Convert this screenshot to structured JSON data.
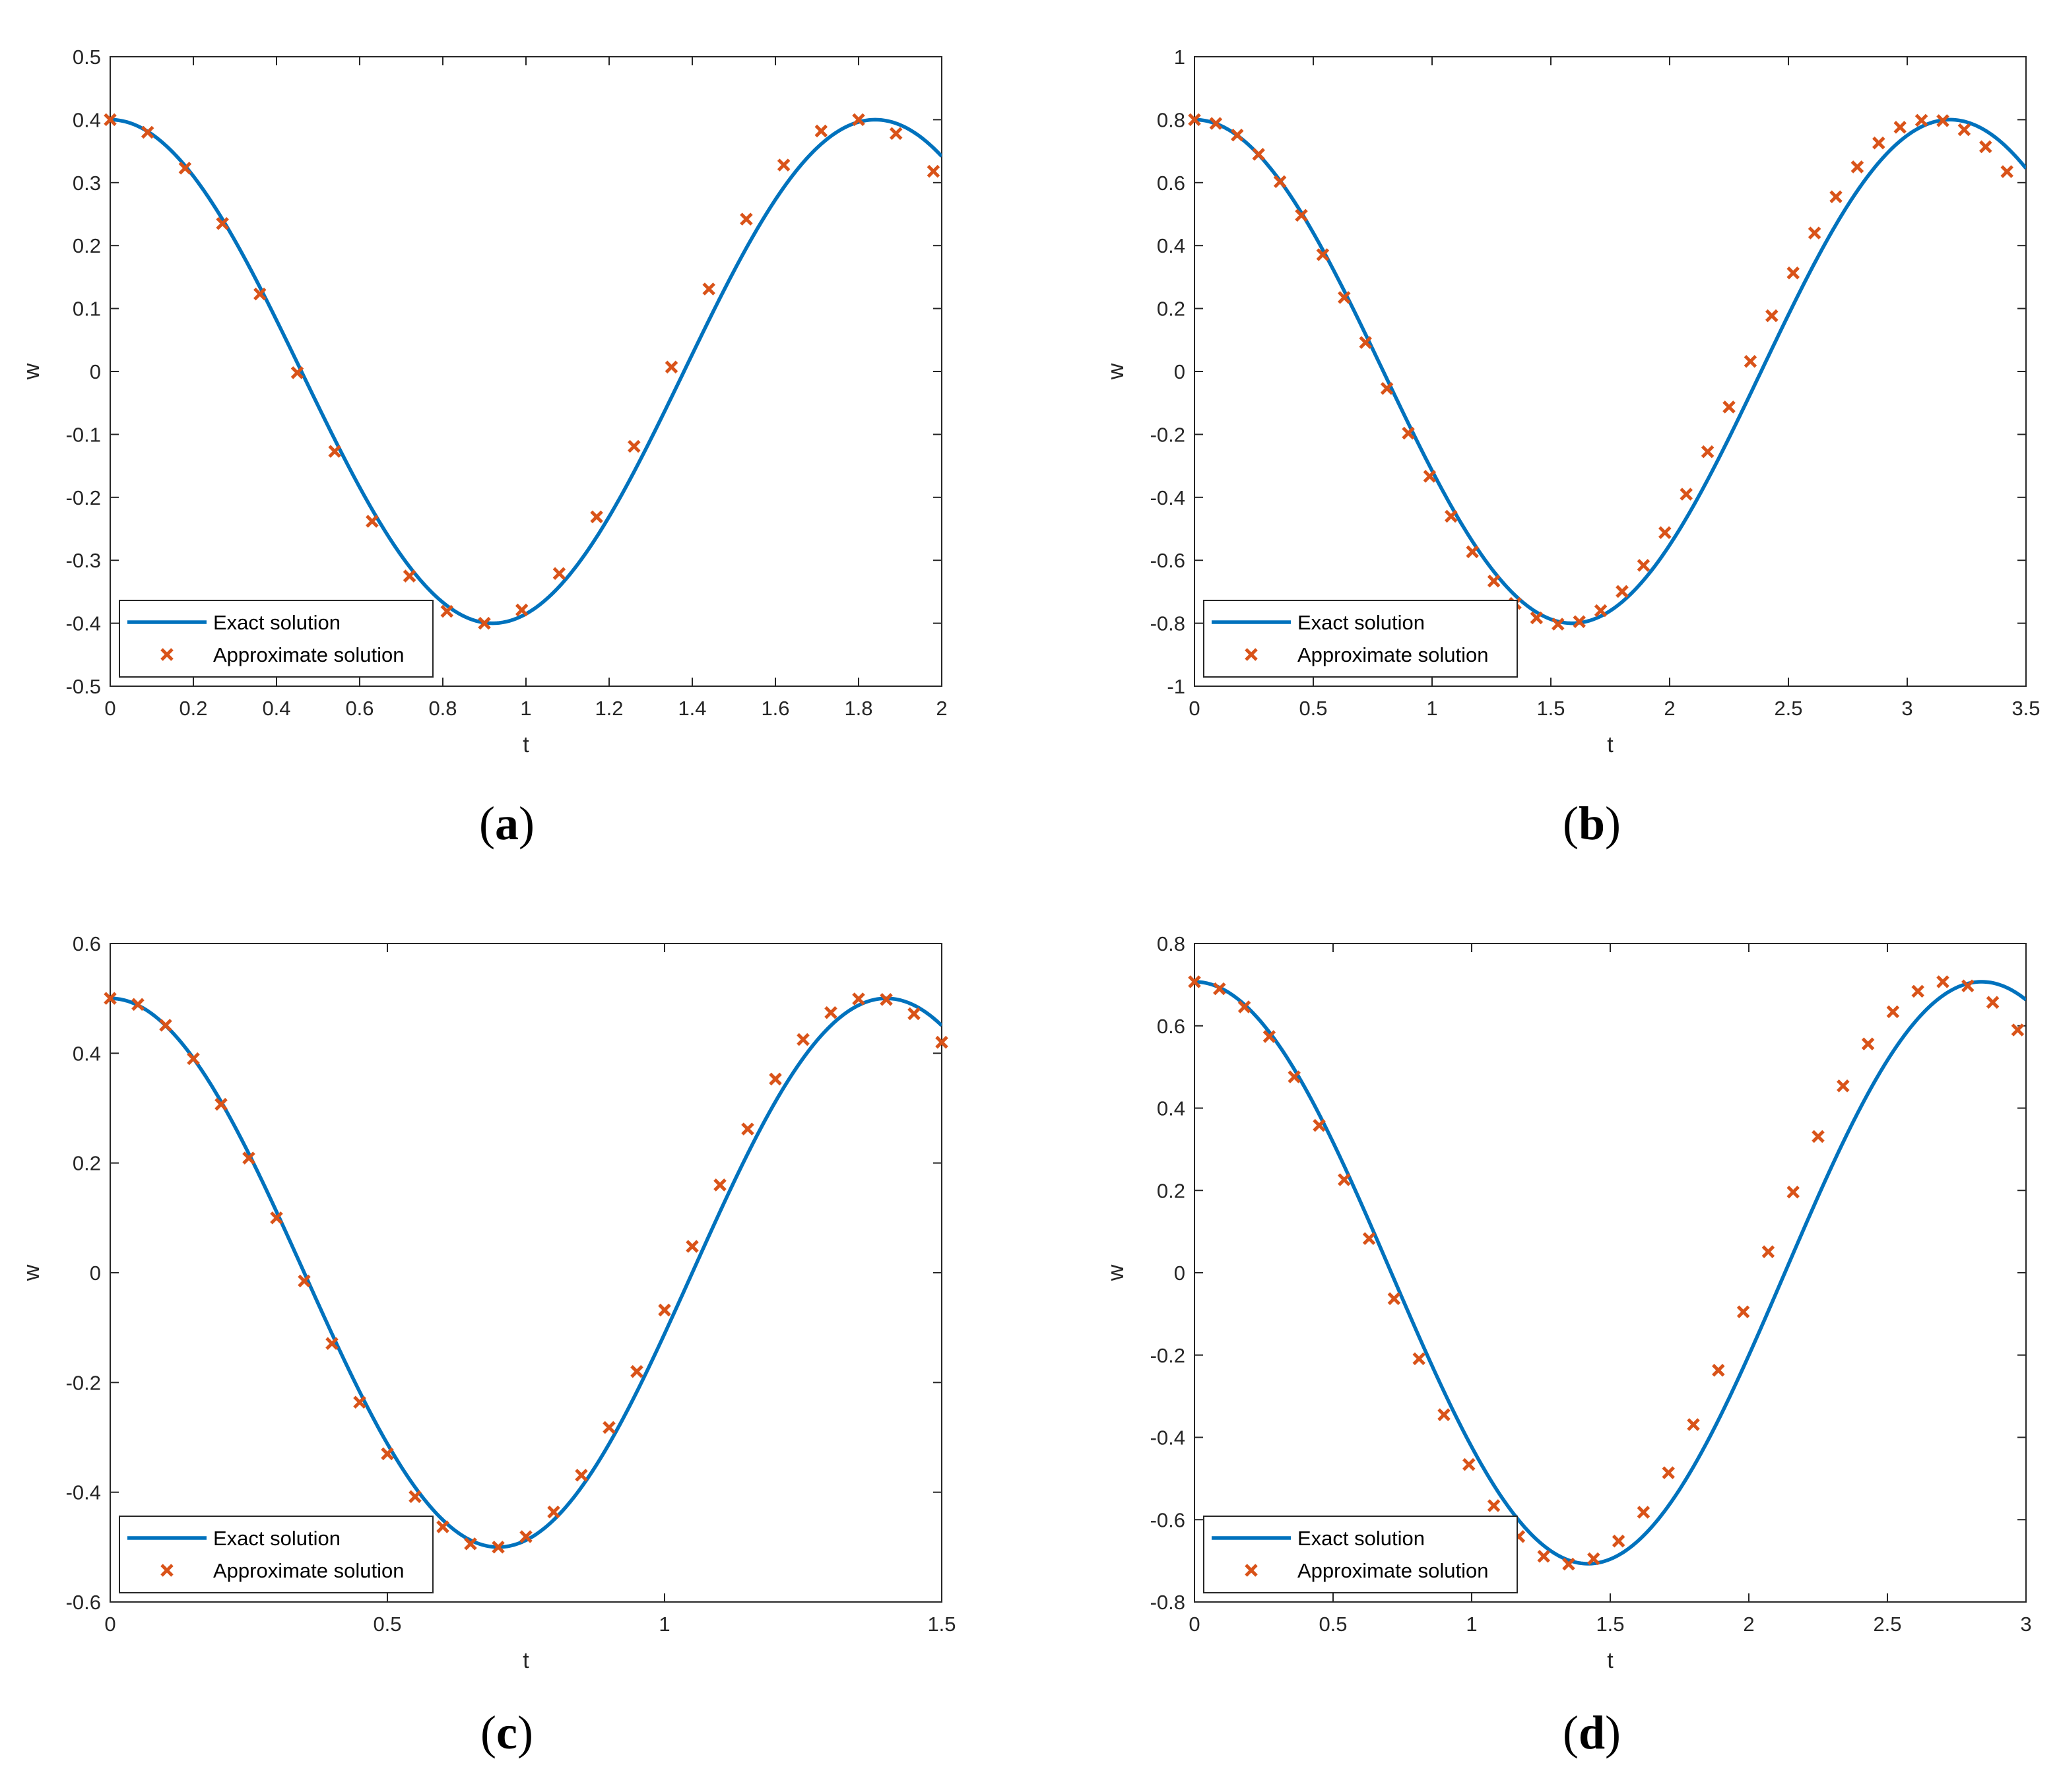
{
  "colors": {
    "exact": "#0072BD",
    "approx": "#D95319",
    "axis": "#262626"
  },
  "chart_data": [
    {
      "type": "line",
      "caption": "a",
      "xlabel": "t",
      "ylabel": "w",
      "xlim": [
        0,
        2
      ],
      "ylim": [
        -0.5,
        0.5
      ],
      "xticks": [
        0,
        0.2,
        0.4,
        0.6,
        0.8,
        1,
        1.2,
        1.4,
        1.6,
        1.8,
        2
      ],
      "xtick_labels": [
        "0",
        "0.2",
        "0.4",
        "0.6",
        "0.8",
        "1",
        "1.2",
        "1.4",
        "1.6",
        "1.8",
        "2"
      ],
      "yticks": [
        -0.5,
        -0.4,
        -0.3,
        -0.2,
        -0.1,
        0,
        0.1,
        0.2,
        0.3,
        0.4,
        0.5
      ],
      "ytick_labels": [
        "-0.5",
        "-0.4",
        "-0.3",
        "-0.2",
        "-0.1",
        "0",
        "0.1",
        "0.2",
        "0.3",
        "0.4",
        "0.5"
      ],
      "legend": {
        "position": "bottom-left",
        "entries": [
          "Exact solution",
          "Approximate solution"
        ]
      },
      "grid": false,
      "series": [
        {
          "name": "Exact solution",
          "style": "line",
          "amplitude": 0.4,
          "period": 1.84,
          "x_end": 2
        },
        {
          "name": "Approximate solution",
          "style": "x-marker",
          "x": [
            0,
            0.09,
            0.18,
            0.27,
            0.36,
            0.45,
            0.54,
            0.63,
            0.72,
            0.81,
            0.9,
            0.99,
            1.08,
            1.17,
            1.26,
            1.35,
            1.44,
            1.53,
            1.62,
            1.71,
            1.8,
            1.89,
            1.98
          ],
          "y": [
            0.4,
            0.38,
            0.323,
            0.235,
            0.123,
            -0.002,
            -0.127,
            -0.238,
            -0.325,
            -0.381,
            -0.4,
            -0.379,
            -0.321,
            -0.231,
            -0.119,
            0.007,
            0.131,
            0.242,
            0.328,
            0.382,
            0.4,
            0.378,
            0.318
          ]
        }
      ]
    },
    {
      "type": "line",
      "caption": "b",
      "xlabel": "t",
      "ylabel": "w",
      "xlim": [
        0,
        3.5
      ],
      "ylim": [
        -1,
        1
      ],
      "xticks": [
        0,
        0.5,
        1,
        1.5,
        2,
        2.5,
        3,
        3.5
      ],
      "xtick_labels": [
        "0",
        "0.5",
        "1",
        "1.5",
        "2",
        "2.5",
        "3",
        "3.5"
      ],
      "yticks": [
        -1,
        -0.8,
        -0.6,
        -0.4,
        -0.2,
        0,
        0.2,
        0.4,
        0.6,
        0.8,
        1
      ],
      "ytick_labels": [
        "-1",
        "-0.8",
        "-0.6",
        "-0.4",
        "-0.2",
        "0",
        "0.2",
        "0.4",
        "0.6",
        "0.8",
        "1"
      ],
      "legend": {
        "position": "bottom-left",
        "entries": [
          "Exact solution",
          "Approximate solution"
        ]
      },
      "grid": false,
      "series": [
        {
          "name": "Exact solution",
          "style": "line",
          "amplitude": 0.8,
          "period": 3.18,
          "x_end": 3.5
        },
        {
          "name": "Approximate solution",
          "style": "x-marker",
          "x": [
            0,
            0.09,
            0.18,
            0.27,
            0.36,
            0.45,
            0.54,
            0.63,
            0.72,
            0.81,
            0.9,
            0.99,
            1.08,
            1.17,
            1.26,
            1.35,
            1.44,
            1.53,
            1.62,
            1.71,
            1.8,
            1.89,
            1.98,
            2.07,
            2.16,
            2.25,
            2.34,
            2.43,
            2.52,
            2.61,
            2.7,
            2.79,
            2.88,
            2.97,
            3.06,
            3.15,
            3.24,
            3.33,
            3.42
          ],
          "y": [
            0.8,
            0.788,
            0.751,
            0.69,
            0.603,
            0.496,
            0.371,
            0.235,
            0.092,
            -0.054,
            -0.196,
            -0.333,
            -0.46,
            -0.573,
            -0.666,
            -0.737,
            -0.783,
            -0.803,
            -0.795,
            -0.76,
            -0.699,
            -0.616,
            -0.512,
            -0.39,
            -0.255,
            -0.113,
            0.032,
            0.177,
            0.313,
            0.44,
            0.555,
            0.65,
            0.726,
            0.776,
            0.798,
            0.797,
            0.768,
            0.714,
            0.635
          ]
        }
      ]
    },
    {
      "type": "line",
      "caption": "c",
      "xlabel": "t",
      "ylabel": "w",
      "xlim": [
        0,
        1.5
      ],
      "ylim": [
        -0.6,
        0.6
      ],
      "xticks": [
        0,
        0.5,
        1,
        1.5
      ],
      "xtick_labels": [
        "0",
        "0.5",
        "1",
        "1.5"
      ],
      "yticks": [
        -0.6,
        -0.4,
        -0.2,
        0,
        0.2,
        0.4,
        0.6
      ],
      "ytick_labels": [
        "-0.6",
        "-0.4",
        "-0.2",
        "0",
        "0.2",
        "0.4",
        "0.6"
      ],
      "legend": {
        "position": "bottom-left",
        "entries": [
          "Exact solution",
          "Approximate solution"
        ]
      },
      "grid": false,
      "series": [
        {
          "name": "Exact solution",
          "style": "line",
          "amplitude": 0.5,
          "period": 1.4,
          "x_end": 1.5
        },
        {
          "name": "Approximate solution",
          "style": "x-marker",
          "x": [
            0,
            0.05,
            0.1,
            0.15,
            0.2,
            0.25,
            0.3,
            0.35,
            0.4,
            0.45,
            0.5,
            0.55,
            0.6,
            0.65,
            0.7,
            0.75,
            0.8,
            0.85,
            0.9,
            0.95,
            1.0,
            1.05,
            1.1,
            1.15,
            1.2,
            1.25,
            1.3,
            1.35,
            1.4,
            1.45,
            1.5
          ],
          "y": [
            0.5,
            0.489,
            0.451,
            0.39,
            0.307,
            0.209,
            0.1,
            -0.015,
            -0.129,
            -0.236,
            -0.33,
            -0.408,
            -0.463,
            -0.494,
            -0.5,
            -0.481,
            -0.436,
            -0.369,
            -0.282,
            -0.18,
            -0.068,
            0.048,
            0.16,
            0.262,
            0.353,
            0.425,
            0.474,
            0.499,
            0.498,
            0.472,
            0.42
          ]
        }
      ]
    },
    {
      "type": "line",
      "caption": "d",
      "xlabel": "t",
      "ylabel": "w",
      "xlim": [
        0,
        3
      ],
      "ylim": [
        -0.8,
        0.8
      ],
      "xticks": [
        0,
        0.5,
        1,
        1.5,
        2,
        2.5,
        3
      ],
      "xtick_labels": [
        "0",
        "0.5",
        "1",
        "1.5",
        "2",
        "2.5",
        "3"
      ],
      "yticks": [
        -0.8,
        -0.6,
        -0.4,
        -0.2,
        0,
        0.2,
        0.4,
        0.6,
        0.8
      ],
      "ytick_labels": [
        "-0.8",
        "-0.6",
        "-0.4",
        "-0.2",
        "0",
        "0.2",
        "0.4",
        "0.6",
        "0.8"
      ],
      "legend": {
        "position": "bottom-left",
        "entries": [
          "Exact solution",
          "Approximate solution"
        ]
      },
      "grid": false,
      "series": [
        {
          "name": "Exact solution",
          "style": "line",
          "amplitude": 0.707,
          "period": 2.84,
          "x_end": 3
        },
        {
          "name": "Approximate solution",
          "style": "x-marker",
          "x": [
            0,
            0.09,
            0.18,
            0.27,
            0.36,
            0.45,
            0.54,
            0.63,
            0.72,
            0.81,
            0.9,
            0.99,
            1.08,
            1.17,
            1.26,
            1.35,
            1.44,
            1.53,
            1.62,
            1.71,
            1.8,
            1.89,
            1.98,
            2.07,
            2.16,
            2.25,
            2.34,
            2.43,
            2.52,
            2.61,
            2.7,
            2.79,
            2.88,
            2.97
          ],
          "y": [
            0.707,
            0.69,
            0.646,
            0.574,
            0.476,
            0.358,
            0.226,
            0.083,
            -0.063,
            -0.209,
            -0.345,
            -0.466,
            -0.566,
            -0.641,
            -0.689,
            -0.708,
            -0.695,
            -0.652,
            -0.582,
            -0.486,
            -0.369,
            -0.237,
            -0.095,
            0.051,
            0.196,
            0.331,
            0.454,
            0.556,
            0.634,
            0.684,
            0.707,
            0.697,
            0.657,
            0.59
          ]
        }
      ]
    }
  ]
}
